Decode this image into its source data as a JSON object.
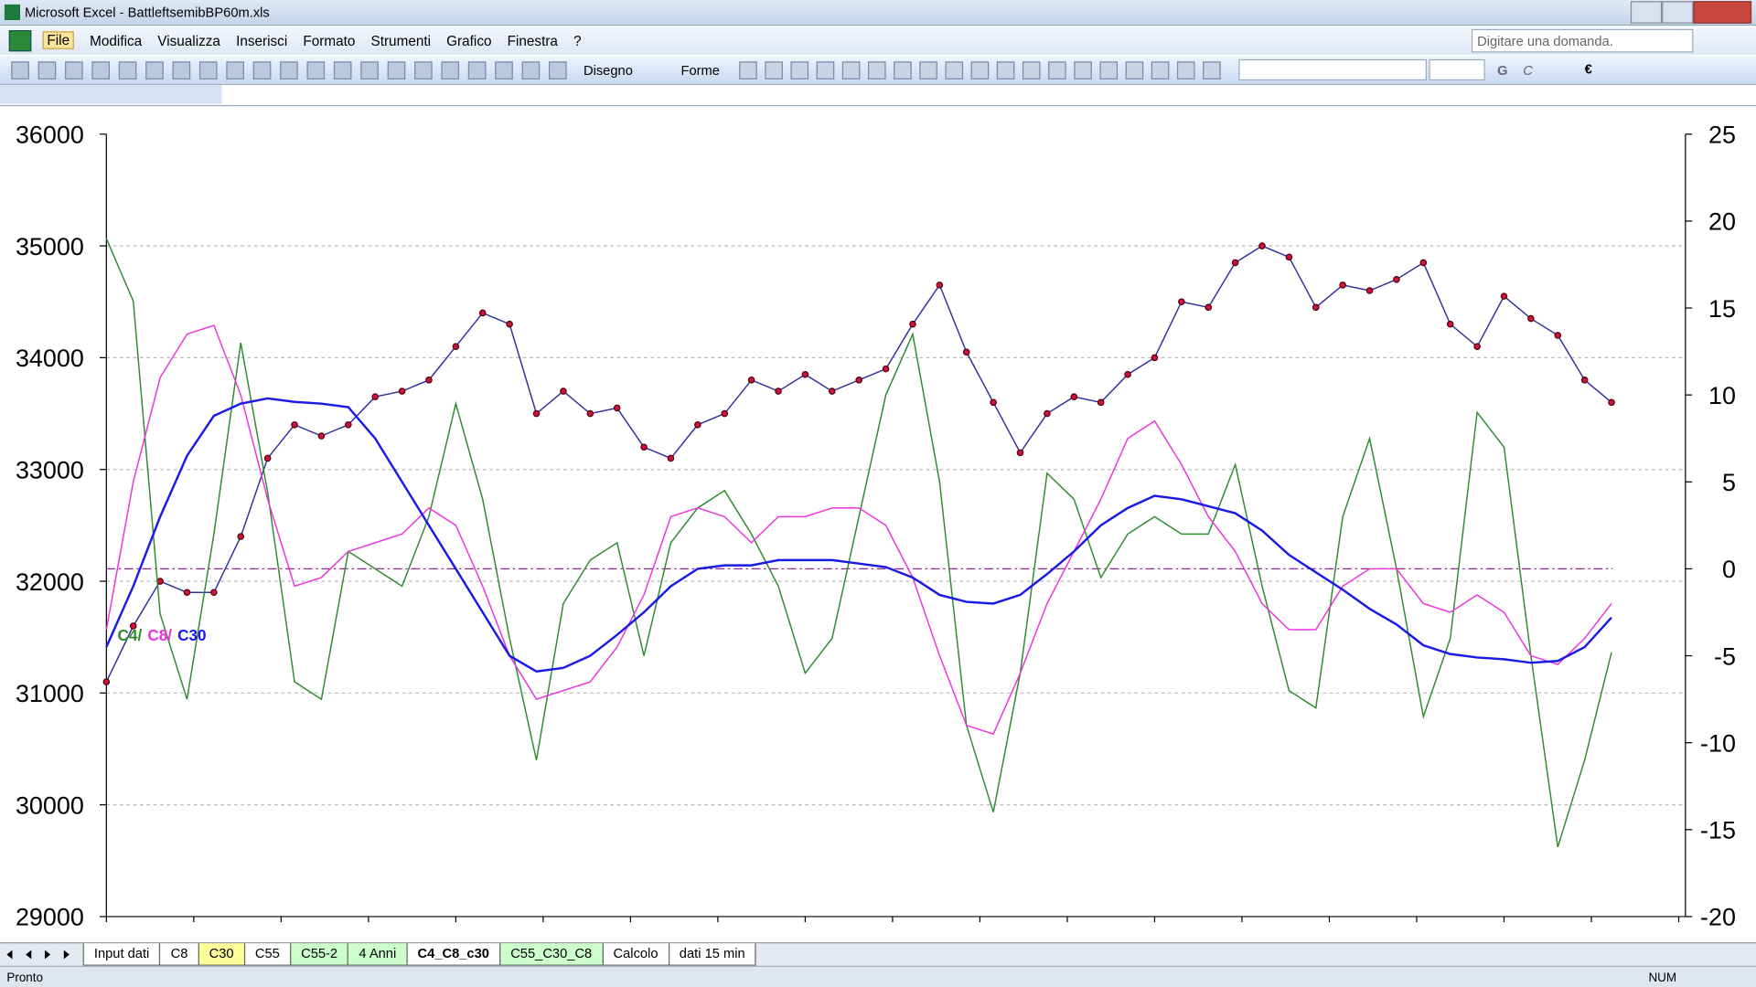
{
  "window": {
    "title": "Microsoft Excel - BattleftsemibBP60m.xls"
  },
  "menu": [
    "File",
    "Modifica",
    "Visualizza",
    "Inserisci",
    "Formato",
    "Strumenti",
    "Grafico",
    "Finestra",
    "?"
  ],
  "help_box": "Digitare una domanda.",
  "toolbar": {
    "draw": "Disegno",
    "shapes": "Forme",
    "bold": "G",
    "italic": "C",
    "currency": "€"
  },
  "chart_data": {
    "type": "line",
    "ylim": [
      29000,
      36000
    ],
    "yticks": [
      29000,
      30000,
      31000,
      32000,
      33000,
      34000,
      35000,
      36000
    ],
    "y2lim": [
      -20,
      25
    ],
    "y2ticks": [
      -20,
      -15,
      -10,
      -5,
      0,
      5,
      10,
      15,
      20,
      25
    ],
    "grid": true,
    "hline": {
      "axis": "y2",
      "value": 0,
      "color": "#a020a0"
    },
    "series": [
      {
        "name": "",
        "color": "#3030a0",
        "marker_color": "#cc1144",
        "values": [
          31100,
          31600,
          32000,
          31900,
          31900,
          32400,
          33100,
          33400,
          33300,
          33400,
          33650,
          33700,
          33800,
          34100,
          34400,
          34300,
          33500,
          33700,
          33500,
          33550,
          33200,
          33100,
          33400,
          33500,
          33800,
          33700,
          33850,
          33700,
          33800,
          33900,
          34300,
          34650,
          34050,
          33600,
          33150,
          33500,
          33650,
          33600,
          33850,
          34000,
          34500,
          34450,
          34850,
          35000,
          34900,
          34450,
          34650,
          34600,
          34700,
          34850,
          34300,
          34100,
          34550,
          34350,
          34200,
          33800,
          33600
        ]
      },
      {
        "name": "C4/",
        "color": "#2e8b2e",
        "axis": "y2",
        "values": [
          19,
          15.4,
          -2.6,
          -7.5,
          2,
          13,
          4.4,
          -6.5,
          -7.5,
          1,
          0,
          -1,
          3,
          9.5,
          4,
          -4,
          -11,
          -2,
          0.5,
          1.5,
          -5,
          1.5,
          3.5,
          4.5,
          2,
          -1,
          -6,
          -4,
          3,
          10,
          13.5,
          5,
          -9,
          -14,
          -6,
          5.5,
          4,
          -0.5,
          2,
          3,
          2,
          2,
          6,
          -1,
          -7,
          -8,
          3,
          7.5,
          0,
          -8.5,
          -4,
          9,
          7,
          -5,
          -16,
          -11,
          -4.8
        ]
      },
      {
        "name": "C8/",
        "color": "#ee33dd",
        "axis": "y2",
        "values": [
          -3.5,
          5,
          11,
          13.5,
          14,
          10,
          4,
          -1,
          -0.5,
          1,
          1.5,
          2,
          3.5,
          2.5,
          -1,
          -5,
          -7.5,
          -7,
          -6.5,
          -4.5,
          -1.5,
          3,
          3.5,
          3,
          1.5,
          3,
          3,
          3.5,
          3.5,
          2.5,
          -0.5,
          -5,
          -9,
          -9.5,
          -6,
          -2,
          1,
          4,
          7.5,
          8.5,
          6,
          3,
          1,
          -2,
          -3.5,
          -3.5,
          -1,
          0,
          0,
          -2,
          -2.5,
          -1.5,
          -2.5,
          -5,
          -5.5,
          -4,
          -2
        ]
      },
      {
        "name": "C30",
        "color": "#1a1ae6",
        "axis": "y2",
        "values": [
          -4.5,
          -1,
          3,
          6.5,
          8.8,
          9.5,
          9.8,
          9.6,
          9.5,
          9.3,
          7.5,
          5,
          2.5,
          0,
          -2.5,
          -5,
          -5.9,
          -5.7,
          -5,
          -3.8,
          -2.5,
          -1,
          0,
          0.2,
          0.2,
          0.5,
          0.5,
          0.5,
          0.3,
          0.1,
          -0.5,
          -1.5,
          -1.9,
          -2,
          -1.5,
          -0.3,
          1,
          2.5,
          3.5,
          4.2,
          4,
          3.6,
          3.2,
          2.2,
          0.8,
          -0.2,
          -1.2,
          -2.3,
          -3.2,
          -4.4,
          -4.9,
          -5.1,
          -5.2,
          -5.4,
          -5.3,
          -4.5,
          -2.8
        ]
      }
    ]
  },
  "tabs": [
    {
      "label": "Input dati",
      "color": "#ffffff"
    },
    {
      "label": "C8",
      "color": "#ffffff"
    },
    {
      "label": "C30",
      "color": "#ffff99"
    },
    {
      "label": "C55",
      "color": "#ffffff"
    },
    {
      "label": "C55-2",
      "color": "#ccffcc"
    },
    {
      "label": "4 Anni",
      "color": "#ccffcc"
    },
    {
      "label": "C4_C8_c30",
      "color": "#ffffff",
      "active": true
    },
    {
      "label": "C55_C30_C8",
      "color": "#ccffcc"
    },
    {
      "label": "Calcolo",
      "color": "#ffffff"
    },
    {
      "label": "dati 15 min",
      "color": "#ffffff"
    }
  ],
  "status": {
    "left": "Pronto",
    "right": "NUM"
  }
}
